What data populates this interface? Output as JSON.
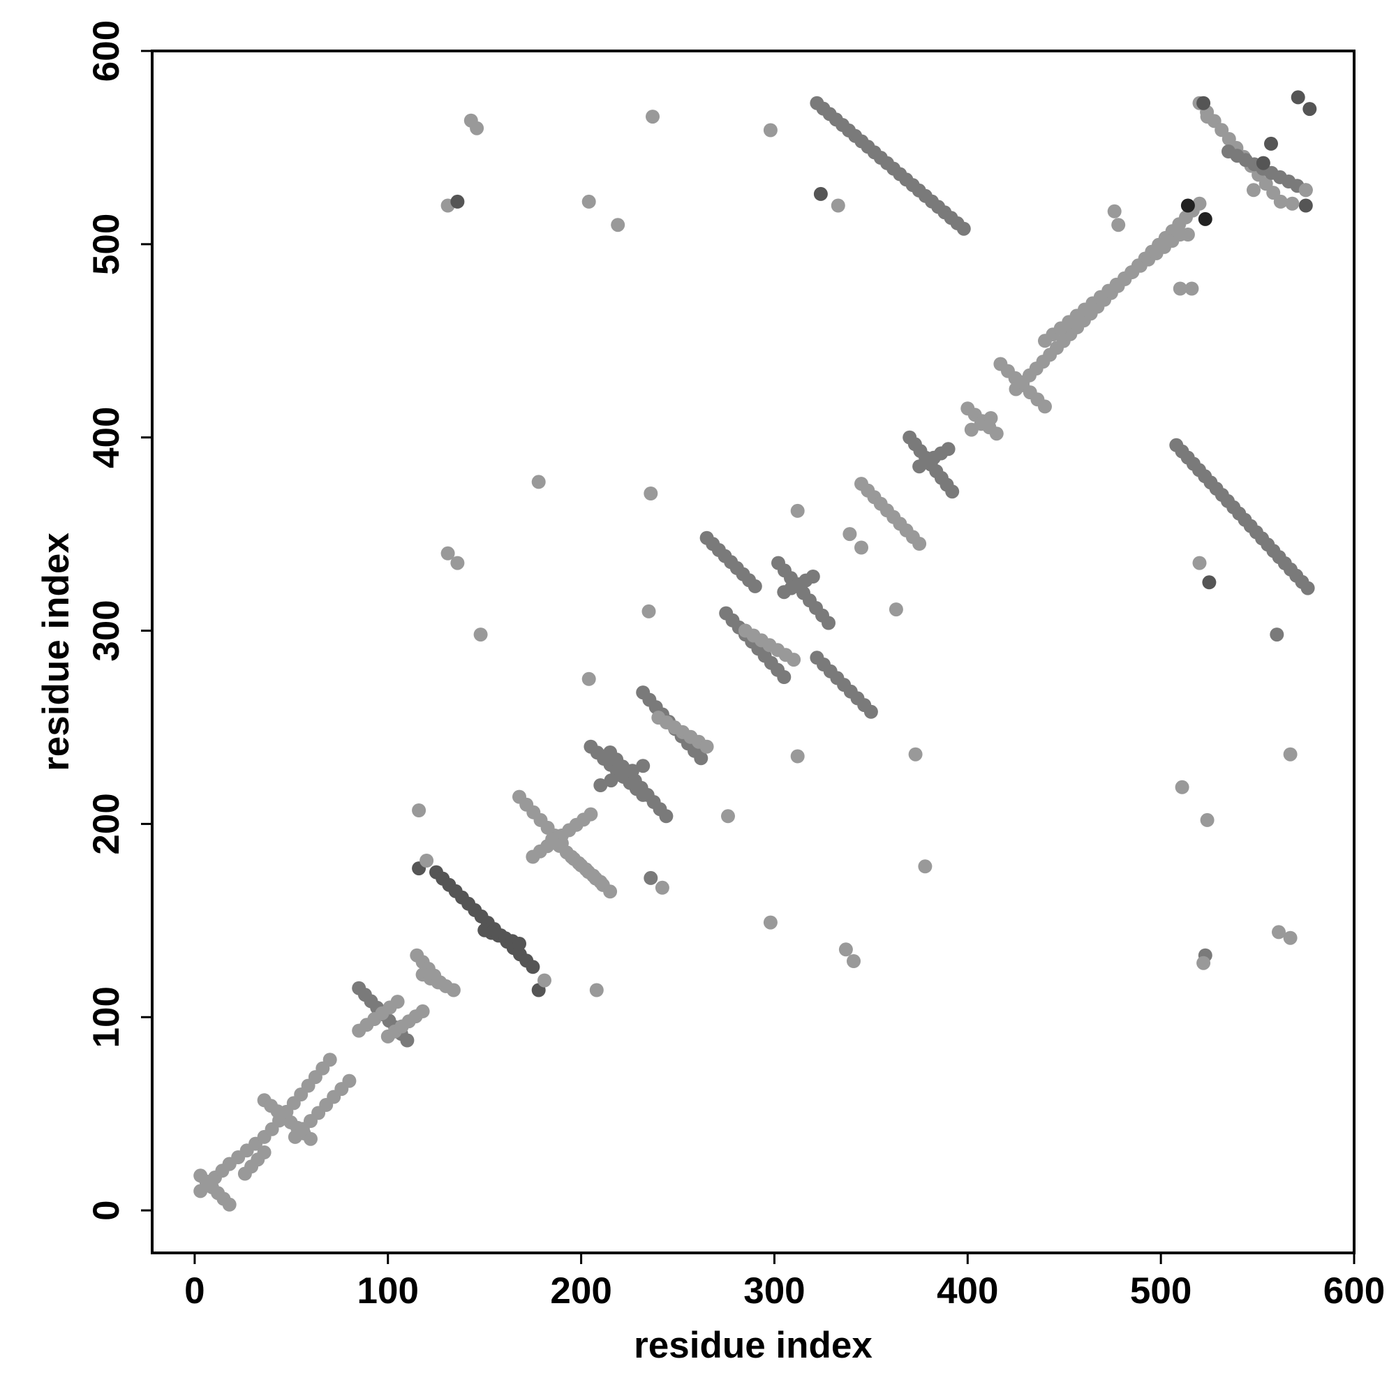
{
  "chart_data": {
    "type": "scatter",
    "title": "",
    "xlabel": "residue index",
    "ylabel": "residue index",
    "xlim": [
      -22,
      600
    ],
    "ylim": [
      -22,
      600
    ],
    "x_ticks": [
      0,
      100,
      200,
      300,
      400,
      500,
      600
    ],
    "y_ticks": [
      0,
      100,
      200,
      300,
      400,
      500,
      600
    ],
    "x_tick_labels": [
      "0",
      "100",
      "200",
      "300",
      "400",
      "500",
      "600"
    ],
    "y_tick_labels": [
      "0",
      "100",
      "200",
      "300",
      "400",
      "500",
      "600"
    ],
    "grid": false,
    "legend": "none",
    "colors": {
      "light": "#999999",
      "medium": "#7a7a7a",
      "dark": "#555555",
      "darkest": "#222222",
      "frame": "#000000"
    },
    "segments": [
      {
        "x": [
          3,
          18
        ],
        "y": [
          18,
          3
        ],
        "shade": "light",
        "n": 6
      },
      {
        "x": [
          3,
          18
        ],
        "y": [
          10,
          24
        ],
        "shade": "light",
        "n": 5
      },
      {
        "x": [
          18,
          36
        ],
        "y": [
          24,
          38
        ],
        "shade": "light",
        "n": 5
      },
      {
        "x": [
          26,
          36
        ],
        "y": [
          19,
          30
        ],
        "shade": "light",
        "n": 4
      },
      {
        "x": [
          36,
          60
        ],
        "y": [
          57,
          37
        ],
        "shade": "light",
        "n": 8
      },
      {
        "x": [
          40,
          70
        ],
        "y": [
          42,
          78
        ],
        "shade": "light",
        "n": 9
      },
      {
        "x": [
          52,
          80
        ],
        "y": [
          38,
          67
        ],
        "shade": "light",
        "n": 8
      },
      {
        "x": [
          85,
          110
        ],
        "y": [
          115,
          88
        ],
        "shade": "medium",
        "n": 9
      },
      {
        "x": [
          85,
          105
        ],
        "y": [
          93,
          108
        ],
        "shade": "light",
        "n": 6
      },
      {
        "x": [
          100,
          118
        ],
        "y": [
          90,
          103
        ],
        "shade": "light",
        "n": 6
      },
      {
        "x": [
          115,
          127
        ],
        "y": [
          132,
          118
        ],
        "shade": "light",
        "n": 5
      },
      {
        "x": [
          118,
          134
        ],
        "y": [
          122,
          114
        ],
        "shade": "light",
        "n": 5
      },
      {
        "x": [
          125,
          175
        ],
        "y": [
          175,
          126
        ],
        "shade": "dark",
        "n": 16
      },
      {
        "x": [
          150,
          168
        ],
        "y": [
          145,
          138
        ],
        "shade": "dark",
        "n": 6
      },
      {
        "x": [
          168,
          190
        ],
        "y": [
          214,
          190
        ],
        "shade": "light",
        "n": 7
      },
      {
        "x": [
          175,
          205
        ],
        "y": [
          183,
          205
        ],
        "shade": "light",
        "n": 9
      },
      {
        "x": [
          185,
          215
        ],
        "y": [
          192,
          165
        ],
        "shade": "light",
        "n": 9
      },
      {
        "x": [
          195,
          210
        ],
        "y": [
          183,
          170
        ],
        "shade": "light",
        "n": 5
      },
      {
        "x": [
          205,
          232
        ],
        "y": [
          240,
          215
        ],
        "shade": "medium",
        "n": 9
      },
      {
        "x": [
          215,
          244
        ],
        "y": [
          237,
          204
        ],
        "shade": "medium",
        "n": 10
      },
      {
        "x": [
          210,
          232
        ],
        "y": [
          220,
          230
        ],
        "shade": "medium",
        "n": 5
      },
      {
        "x": [
          232,
          262
        ],
        "y": [
          268,
          234
        ],
        "shade": "medium",
        "n": 10
      },
      {
        "x": [
          240,
          265
        ],
        "y": [
          255,
          240
        ],
        "shade": "light",
        "n": 7
      },
      {
        "x": [
          265,
          290
        ],
        "y": [
          348,
          323
        ],
        "shade": "medium",
        "n": 9
      },
      {
        "x": [
          275,
          305
        ],
        "y": [
          309,
          276
        ],
        "shade": "medium",
        "n": 10
      },
      {
        "x": [
          285,
          310
        ],
        "y": [
          300,
          285
        ],
        "shade": "light",
        "n": 7
      },
      {
        "x": [
          302,
          328
        ],
        "y": [
          335,
          304
        ],
        "shade": "medium",
        "n": 9
      },
      {
        "x": [
          305,
          320
        ],
        "y": [
          320,
          328
        ],
        "shade": "medium",
        "n": 5
      },
      {
        "x": [
          322,
          350
        ],
        "y": [
          286,
          258
        ],
        "shade": "medium",
        "n": 9
      },
      {
        "x": [
          345,
          375
        ],
        "y": [
          376,
          345
        ],
        "shade": "light",
        "n": 10
      },
      {
        "x": [
          370,
          392
        ],
        "y": [
          400,
          372
        ],
        "shade": "medium",
        "n": 9
      },
      {
        "x": [
          375,
          390
        ],
        "y": [
          385,
          394
        ],
        "shade": "medium",
        "n": 5
      },
      {
        "x": [
          400,
          415
        ],
        "y": [
          415,
          402
        ],
        "shade": "light",
        "n": 5
      },
      {
        "x": [
          402,
          412
        ],
        "y": [
          404,
          410
        ],
        "shade": "light",
        "n": 3
      },
      {
        "x": [
          417,
          440
        ],
        "y": [
          438,
          416
        ],
        "shade": "light",
        "n": 7
      },
      {
        "x": [
          425,
          520
        ],
        "y": [
          425,
          521
        ],
        "shade": "light",
        "n": 28
      },
      {
        "x": [
          440,
          510
        ],
        "y": [
          450,
          505
        ],
        "shade": "light",
        "n": 18
      },
      {
        "x": [
          322,
          398
        ],
        "y": [
          573,
          508
        ],
        "shade": "medium",
        "n": 24
      },
      {
        "x": [
          508,
          576
        ],
        "y": [
          396,
          322
        ],
        "shade": "medium",
        "n": 24
      },
      {
        "x": [
          520,
          562
        ],
        "y": [
          573,
          522
        ],
        "shade": "light",
        "n": 12
      },
      {
        "x": [
          535,
          575
        ],
        "y": [
          548,
          528
        ],
        "shade": "medium",
        "n": 10
      }
    ],
    "points": [
      {
        "x": 143,
        "y": 564,
        "shade": "light"
      },
      {
        "x": 146,
        "y": 560,
        "shade": "light"
      },
      {
        "x": 131,
        "y": 520,
        "shade": "light"
      },
      {
        "x": 136,
        "y": 522,
        "shade": "dark"
      },
      {
        "x": 237,
        "y": 566,
        "shade": "light"
      },
      {
        "x": 298,
        "y": 559,
        "shade": "light"
      },
      {
        "x": 204,
        "y": 522,
        "shade": "light"
      },
      {
        "x": 219,
        "y": 510,
        "shade": "light"
      },
      {
        "x": 324,
        "y": 526,
        "shade": "dark"
      },
      {
        "x": 333,
        "y": 520,
        "shade": "light"
      },
      {
        "x": 178,
        "y": 377,
        "shade": "light"
      },
      {
        "x": 236,
        "y": 371,
        "shade": "light"
      },
      {
        "x": 131,
        "y": 340,
        "shade": "light"
      },
      {
        "x": 136,
        "y": 335,
        "shade": "light"
      },
      {
        "x": 148,
        "y": 298,
        "shade": "light"
      },
      {
        "x": 235,
        "y": 310,
        "shade": "light"
      },
      {
        "x": 312,
        "y": 362,
        "shade": "light"
      },
      {
        "x": 339,
        "y": 350,
        "shade": "light"
      },
      {
        "x": 345,
        "y": 343,
        "shade": "light"
      },
      {
        "x": 363,
        "y": 311,
        "shade": "light"
      },
      {
        "x": 204,
        "y": 275,
        "shade": "light"
      },
      {
        "x": 312,
        "y": 235,
        "shade": "light"
      },
      {
        "x": 373,
        "y": 236,
        "shade": "light"
      },
      {
        "x": 276,
        "y": 204,
        "shade": "light"
      },
      {
        "x": 116,
        "y": 207,
        "shade": "light"
      },
      {
        "x": 378,
        "y": 178,
        "shade": "light"
      },
      {
        "x": 236,
        "y": 172,
        "shade": "medium"
      },
      {
        "x": 242,
        "y": 167,
        "shade": "light"
      },
      {
        "x": 116,
        "y": 177,
        "shade": "dark"
      },
      {
        "x": 120,
        "y": 181,
        "shade": "light"
      },
      {
        "x": 298,
        "y": 149,
        "shade": "light"
      },
      {
        "x": 337,
        "y": 135,
        "shade": "light"
      },
      {
        "x": 341,
        "y": 129,
        "shade": "light"
      },
      {
        "x": 208,
        "y": 114,
        "shade": "light"
      },
      {
        "x": 178,
        "y": 114,
        "shade": "dark"
      },
      {
        "x": 181,
        "y": 119,
        "shade": "light"
      },
      {
        "x": 476,
        "y": 517,
        "shade": "light"
      },
      {
        "x": 478,
        "y": 510,
        "shade": "light"
      },
      {
        "x": 510,
        "y": 477,
        "shade": "light"
      },
      {
        "x": 516,
        "y": 477,
        "shade": "light"
      },
      {
        "x": 514,
        "y": 520,
        "shade": "darkest"
      },
      {
        "x": 523,
        "y": 513,
        "shade": "darkest"
      },
      {
        "x": 514,
        "y": 505,
        "shade": "light"
      },
      {
        "x": 520,
        "y": 335,
        "shade": "light"
      },
      {
        "x": 525,
        "y": 325,
        "shade": "dark"
      },
      {
        "x": 560,
        "y": 298,
        "shade": "medium"
      },
      {
        "x": 567,
        "y": 236,
        "shade": "light"
      },
      {
        "x": 511,
        "y": 219,
        "shade": "light"
      },
      {
        "x": 524,
        "y": 202,
        "shade": "light"
      },
      {
        "x": 561,
        "y": 144,
        "shade": "light"
      },
      {
        "x": 567,
        "y": 141,
        "shade": "light"
      },
      {
        "x": 523,
        "y": 132,
        "shade": "medium"
      },
      {
        "x": 522,
        "y": 128,
        "shade": "light"
      },
      {
        "x": 571,
        "y": 576,
        "shade": "dark"
      },
      {
        "x": 577,
        "y": 570,
        "shade": "dark"
      },
      {
        "x": 522,
        "y": 573,
        "shade": "dark"
      },
      {
        "x": 524,
        "y": 566,
        "shade": "light"
      },
      {
        "x": 557,
        "y": 552,
        "shade": "dark"
      },
      {
        "x": 553,
        "y": 542,
        "shade": "dark"
      },
      {
        "x": 575,
        "y": 520,
        "shade": "dark"
      },
      {
        "x": 575,
        "y": 528,
        "shade": "light"
      },
      {
        "x": 568,
        "y": 521,
        "shade": "light"
      },
      {
        "x": 548,
        "y": 528,
        "shade": "light"
      }
    ]
  }
}
